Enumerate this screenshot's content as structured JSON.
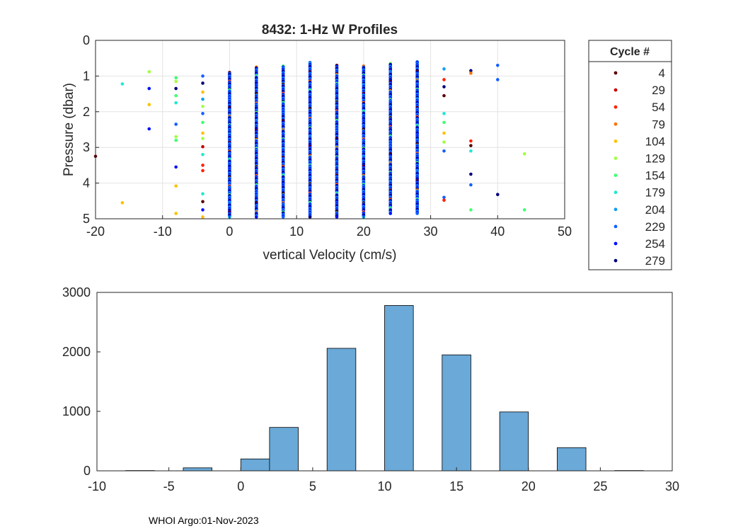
{
  "chart_data": [
    {
      "type": "scatter",
      "title": "8432: 1-Hz W Profiles",
      "xlabel": "vertical Velocity (cm/s)",
      "ylabel": "Pressure (dbar)",
      "xlim": [
        -20,
        50
      ],
      "ylim": [
        0,
        5
      ],
      "y_reversed": true,
      "grid": true,
      "xticks": [
        "-20",
        "-10",
        "0",
        "10",
        "20",
        "30",
        "40",
        "50"
      ],
      "yticks": [
        "0",
        "1",
        "2",
        "3",
        "4",
        "5"
      ],
      "legend": {
        "title": "Cycle #",
        "placement": "outside-right",
        "entries": [
          {
            "label": "4",
            "color": "#5a0000"
          },
          {
            "label": "29",
            "color": "#c80000"
          },
          {
            "label": "54",
            "color": "#ff2000"
          },
          {
            "label": "79",
            "color": "#ff7000"
          },
          {
            "label": "104",
            "color": "#ffc000"
          },
          {
            "label": "129",
            "color": "#a0ff40"
          },
          {
            "label": "154",
            "color": "#40ff70"
          },
          {
            "label": "179",
            "color": "#20e8d0"
          },
          {
            "label": "204",
            "color": "#10a0f0"
          },
          {
            "label": "229",
            "color": "#1060ff"
          },
          {
            "label": "254",
            "color": "#0010ff"
          },
          {
            "label": "279",
            "color": "#00007a"
          }
        ]
      },
      "dense_columns": [
        {
          "x": 0,
          "pmin": 0.9,
          "pmax": 4.95
        },
        {
          "x": 4,
          "pmin": 0.75,
          "pmax": 4.95
        },
        {
          "x": 8,
          "pmin": 0.72,
          "pmax": 4.95
        },
        {
          "x": 12,
          "pmin": 0.62,
          "pmax": 4.95
        },
        {
          "x": 16,
          "pmin": 0.7,
          "pmax": 4.95
        },
        {
          "x": 20,
          "pmin": 0.72,
          "pmax": 4.95
        },
        {
          "x": 24,
          "pmin": 0.65,
          "pmax": 4.85
        },
        {
          "x": 28,
          "pmin": 0.6,
          "pmax": 4.85
        }
      ],
      "points": [
        {
          "x": -20,
          "p": 3.25,
          "c": "#5a0000"
        },
        {
          "x": -16,
          "p": 1.22,
          "c": "#20e8d0"
        },
        {
          "x": -16,
          "p": 4.55,
          "c": "#ffc000"
        },
        {
          "x": -12,
          "p": 0.88,
          "c": "#a0ff40"
        },
        {
          "x": -12,
          "p": 1.35,
          "c": "#0010ff"
        },
        {
          "x": -12,
          "p": 1.8,
          "c": "#ffc000"
        },
        {
          "x": -12,
          "p": 2.48,
          "c": "#0010ff"
        },
        {
          "x": -8,
          "p": 1.05,
          "c": "#40ff70"
        },
        {
          "x": -8,
          "p": 1.15,
          "c": "#a0ff40"
        },
        {
          "x": -8,
          "p": 1.35,
          "c": "#00007a"
        },
        {
          "x": -8,
          "p": 1.55,
          "c": "#40ff70"
        },
        {
          "x": -8,
          "p": 1.75,
          "c": "#20e8d0"
        },
        {
          "x": -8,
          "p": 2.35,
          "c": "#1060ff"
        },
        {
          "x": -8,
          "p": 2.7,
          "c": "#a0ff40"
        },
        {
          "x": -8,
          "p": 2.8,
          "c": "#40ff70"
        },
        {
          "x": -8,
          "p": 3.55,
          "c": "#0010ff"
        },
        {
          "x": -8,
          "p": 4.08,
          "c": "#ffc000"
        },
        {
          "x": -8,
          "p": 4.85,
          "c": "#ffc000"
        },
        {
          "x": -4,
          "p": 1.0,
          "c": "#1060ff"
        },
        {
          "x": -4,
          "p": 1.2,
          "c": "#00007a"
        },
        {
          "x": -4,
          "p": 1.45,
          "c": "#ffc000"
        },
        {
          "x": -4,
          "p": 1.65,
          "c": "#10a0f0"
        },
        {
          "x": -4,
          "p": 1.85,
          "c": "#a0ff40"
        },
        {
          "x": -4,
          "p": 2.05,
          "c": "#1060ff"
        },
        {
          "x": -4,
          "p": 2.3,
          "c": "#40ff70"
        },
        {
          "x": -4,
          "p": 2.6,
          "c": "#ffc000"
        },
        {
          "x": -4,
          "p": 2.75,
          "c": "#a0ff40"
        },
        {
          "x": -4,
          "p": 2.98,
          "c": "#c80000"
        },
        {
          "x": -4,
          "p": 3.2,
          "c": "#20e8d0"
        },
        {
          "x": -4,
          "p": 3.5,
          "c": "#ff2000"
        },
        {
          "x": -4,
          "p": 3.65,
          "c": "#ff2000"
        },
        {
          "x": -4,
          "p": 4.3,
          "c": "#20e8d0"
        },
        {
          "x": -4,
          "p": 4.52,
          "c": "#5a0000"
        },
        {
          "x": -4,
          "p": 4.75,
          "c": "#0010ff"
        },
        {
          "x": -4,
          "p": 4.95,
          "c": "#ffc000"
        },
        {
          "x": 32,
          "p": 0.8,
          "c": "#10a0f0"
        },
        {
          "x": 32,
          "p": 1.1,
          "c": "#ff2000"
        },
        {
          "x": 32,
          "p": 1.3,
          "c": "#00007a"
        },
        {
          "x": 32,
          "p": 1.55,
          "c": "#5a0000"
        },
        {
          "x": 32,
          "p": 2.05,
          "c": "#20e8d0"
        },
        {
          "x": 32,
          "p": 2.3,
          "c": "#40ff70"
        },
        {
          "x": 32,
          "p": 2.6,
          "c": "#ffc000"
        },
        {
          "x": 32,
          "p": 2.85,
          "c": "#a0ff40"
        },
        {
          "x": 32,
          "p": 3.1,
          "c": "#1060ff"
        },
        {
          "x": 32,
          "p": 4.4,
          "c": "#1060ff"
        },
        {
          "x": 32,
          "p": 4.48,
          "c": "#ff2000"
        },
        {
          "x": 36,
          "p": 0.85,
          "c": "#00007a"
        },
        {
          "x": 36,
          "p": 0.92,
          "c": "#ff7000"
        },
        {
          "x": 36,
          "p": 2.82,
          "c": "#ff2000"
        },
        {
          "x": 36,
          "p": 2.95,
          "c": "#5a0000"
        },
        {
          "x": 36,
          "p": 3.1,
          "c": "#20e8d0"
        },
        {
          "x": 36,
          "p": 3.75,
          "c": "#00007a"
        },
        {
          "x": 36,
          "p": 4.05,
          "c": "#1060ff"
        },
        {
          "x": 36,
          "p": 4.75,
          "c": "#40ff70"
        },
        {
          "x": 40,
          "p": 0.7,
          "c": "#1060ff"
        },
        {
          "x": 40,
          "p": 1.1,
          "c": "#1060ff"
        },
        {
          "x": 40,
          "p": 4.32,
          "c": "#00007a"
        },
        {
          "x": 44,
          "p": 3.18,
          "c": "#a0ff40"
        },
        {
          "x": 44,
          "p": 4.75,
          "c": "#40ff70"
        }
      ]
    },
    {
      "type": "bar",
      "title": "",
      "xlabel": "",
      "ylabel": "",
      "xlim": [
        -10,
        30
      ],
      "ylim": [
        0,
        3000
      ],
      "xticks": [
        "-10",
        "-5",
        "0",
        "5",
        "10",
        "15",
        "20",
        "25",
        "30"
      ],
      "yticks": [
        "0",
        "1000",
        "2000",
        "3000"
      ],
      "bar_color": "#6aa9d8",
      "bins": [
        {
          "x0": -8,
          "x1": -6,
          "value": 5
        },
        {
          "x0": -4,
          "x1": -2,
          "value": 50
        },
        {
          "x0": 0,
          "x1": 2,
          "value": 200
        },
        {
          "x0": 2,
          "x1": 4,
          "value": 730
        },
        {
          "x0": 6,
          "x1": 8,
          "value": 2060
        },
        {
          "x0": 10,
          "x1": 12,
          "value": 2780
        },
        {
          "x0": 14,
          "x1": 16,
          "value": 1950
        },
        {
          "x0": 18,
          "x1": 20,
          "value": 990
        },
        {
          "x0": 22,
          "x1": 24,
          "value": 390
        },
        {
          "x0": 26,
          "x1": 28,
          "value": 5
        }
      ]
    }
  ],
  "footer": {
    "text": "WHOI Argo:01-Nov-2023"
  }
}
